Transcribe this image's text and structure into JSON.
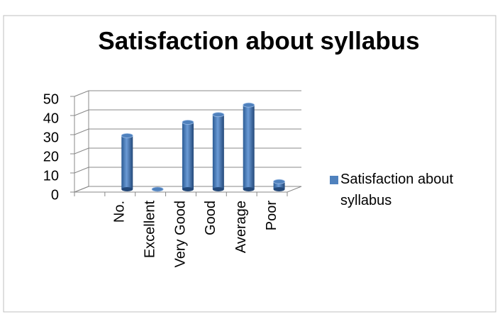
{
  "chart_data": {
    "type": "bar3d",
    "title": "Satisfaction about syllabus",
    "categories": [
      null,
      "No.",
      "Excellent",
      "Very Good",
      "Good",
      "Average",
      "Poor"
    ],
    "series": [
      {
        "name": "Satisfaction about syllabus",
        "color": "#4f81bd",
        "values": [
          null,
          28,
          0,
          35,
          39,
          44,
          4
        ]
      }
    ],
    "ylim": [
      0,
      50
    ],
    "yticks": [
      0,
      10,
      20,
      30,
      40,
      50
    ],
    "grid": true,
    "legend": "right"
  }
}
